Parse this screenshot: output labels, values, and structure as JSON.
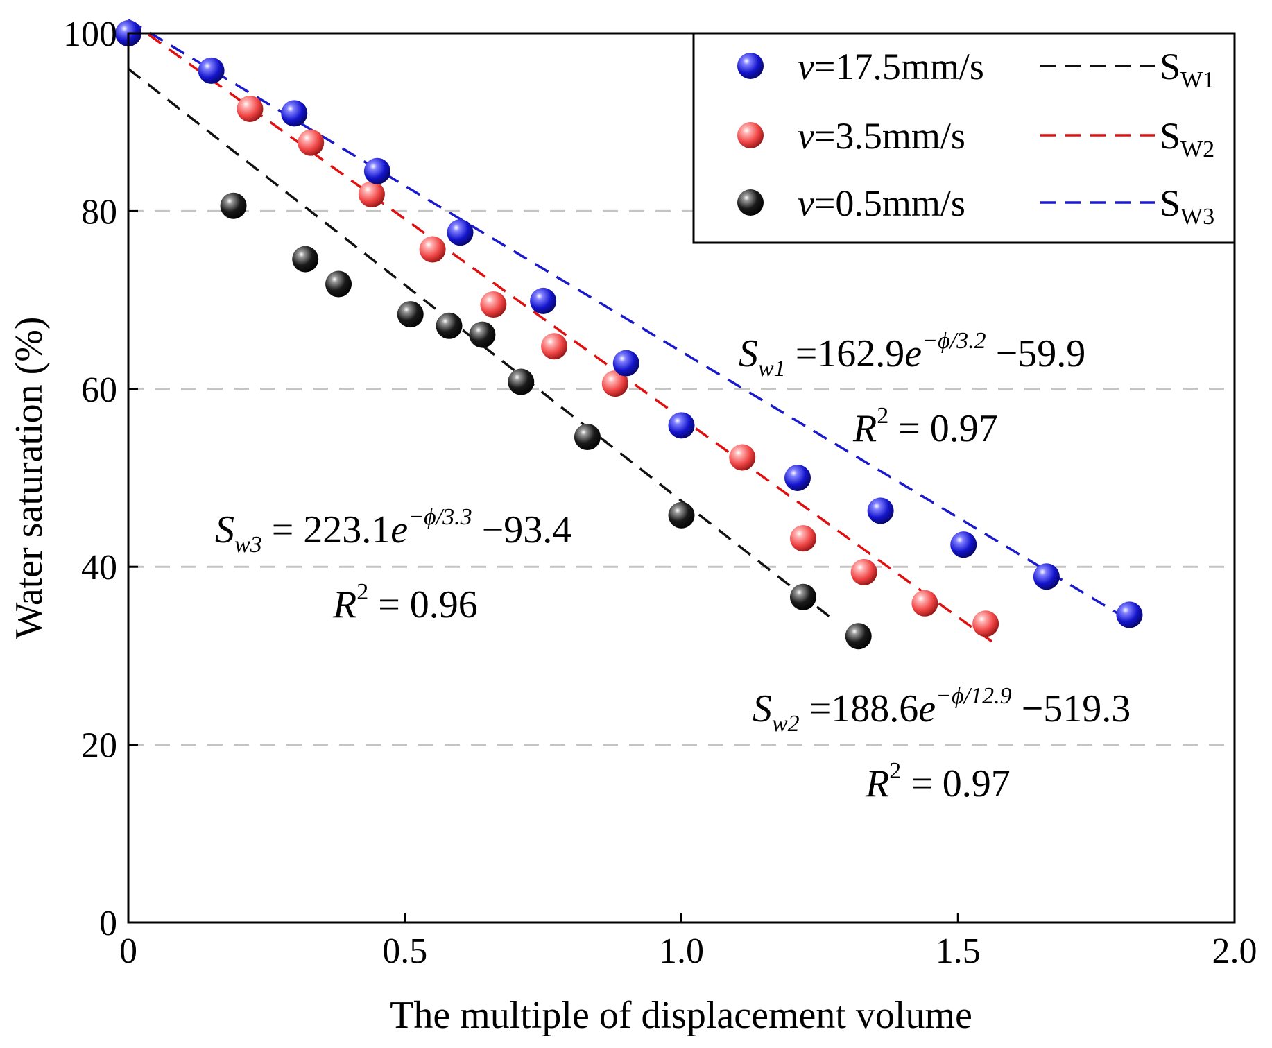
{
  "chart_data": {
    "type": "scatter",
    "xlabel": "The multiple of displacement volume",
    "ylabel": "Water saturation (%)",
    "xlim": [
      0,
      2.0
    ],
    "ylim": [
      0,
      100
    ],
    "xticks": [
      0,
      0.5,
      1.0,
      1.5,
      2.0
    ],
    "xtick_labels": [
      "0",
      "0.5",
      "1.0",
      "1.5",
      "2.0"
    ],
    "yticks": [
      0,
      20,
      40,
      60,
      80,
      100
    ],
    "ytick_labels": [
      "0",
      "20",
      "40",
      "60",
      "80",
      "100"
    ],
    "gridlines_y": [
      20,
      40,
      60,
      80
    ],
    "legend_position": "top-right",
    "series": [
      {
        "name": "v=17.5mm/s",
        "legend_v": "v",
        "legend_rest": "=17.5mm/s",
        "color": "#1515c8",
        "x": [
          0.0,
          0.15,
          0.3,
          0.45,
          0.6,
          0.75,
          0.9,
          1.0,
          1.21,
          1.36,
          1.51,
          1.66,
          1.81
        ],
        "y": [
          100,
          95.8,
          91,
          84.5,
          77.6,
          69.9,
          62.9,
          55.9,
          50,
          46.3,
          42.5,
          38.9,
          34.6
        ]
      },
      {
        "name": "v=3.5mm/s",
        "legend_v": "v",
        "legend_rest": "=3.5mm/s",
        "color": "#ee3b3b",
        "x": [
          0.0,
          0.22,
          0.33,
          0.44,
          0.55,
          0.66,
          0.77,
          0.88,
          1.11,
          1.22,
          1.33,
          1.44,
          1.55
        ],
        "y": [
          100,
          91.5,
          87.7,
          81.9,
          75.7,
          69.5,
          64.8,
          60.6,
          52.3,
          43.2,
          39.4,
          35.9,
          33.6
        ]
      },
      {
        "name": "v=0.5mm/s",
        "legend_v": "v",
        "legend_rest": "=0.5mm/s",
        "color": "#111111",
        "x": [
          0.19,
          0.32,
          0.38,
          0.51,
          0.58,
          0.64,
          0.71,
          0.83,
          1.0,
          1.22,
          1.32
        ],
        "y": [
          80.6,
          74.6,
          71.8,
          68.4,
          67.1,
          66.1,
          60.8,
          54.6,
          45.8,
          36.6,
          32.2
        ]
      }
    ],
    "fits": [
      {
        "name": "SW1",
        "label_main": "S",
        "label_sub": "W1",
        "color": "#111111",
        "x": [
          0.0,
          1.28
        ],
        "y": [
          96,
          33.8
        ]
      },
      {
        "name": "SW2",
        "label_main": "S",
        "label_sub": "W2",
        "color": "#e01010",
        "x": [
          0.0,
          1.57
        ],
        "y": [
          101.5,
          31.2
        ]
      },
      {
        "name": "SW3",
        "label_main": "S",
        "label_sub": "W3",
        "color": "#1a1acc",
        "x": [
          0.0,
          1.82
        ],
        "y": [
          101.5,
          33.6
        ]
      }
    ],
    "annotations": [
      {
        "id": "sw1",
        "S": "S",
        "sub": "w1",
        "eq": "=162.9",
        "e": "e",
        "sup": "−ϕ/3.2",
        "tail": "−59.9",
        "r2": "= 0.97"
      },
      {
        "id": "sw3",
        "S": "S",
        "sub": "w3",
        "eq": "= 223.1",
        "e": "e",
        "sup": "−ϕ/3.3",
        "tail": "−93.4",
        "r2": "= 0.96"
      },
      {
        "id": "sw2",
        "S": "S",
        "sub": "w2",
        "eq": "=188.6",
        "e": "e",
        "sup": "−ϕ/12.9",
        "tail": "−519.3",
        "r2": "= 0.97"
      }
    ],
    "r2_label": "R",
    "r2_sup": "2"
  }
}
